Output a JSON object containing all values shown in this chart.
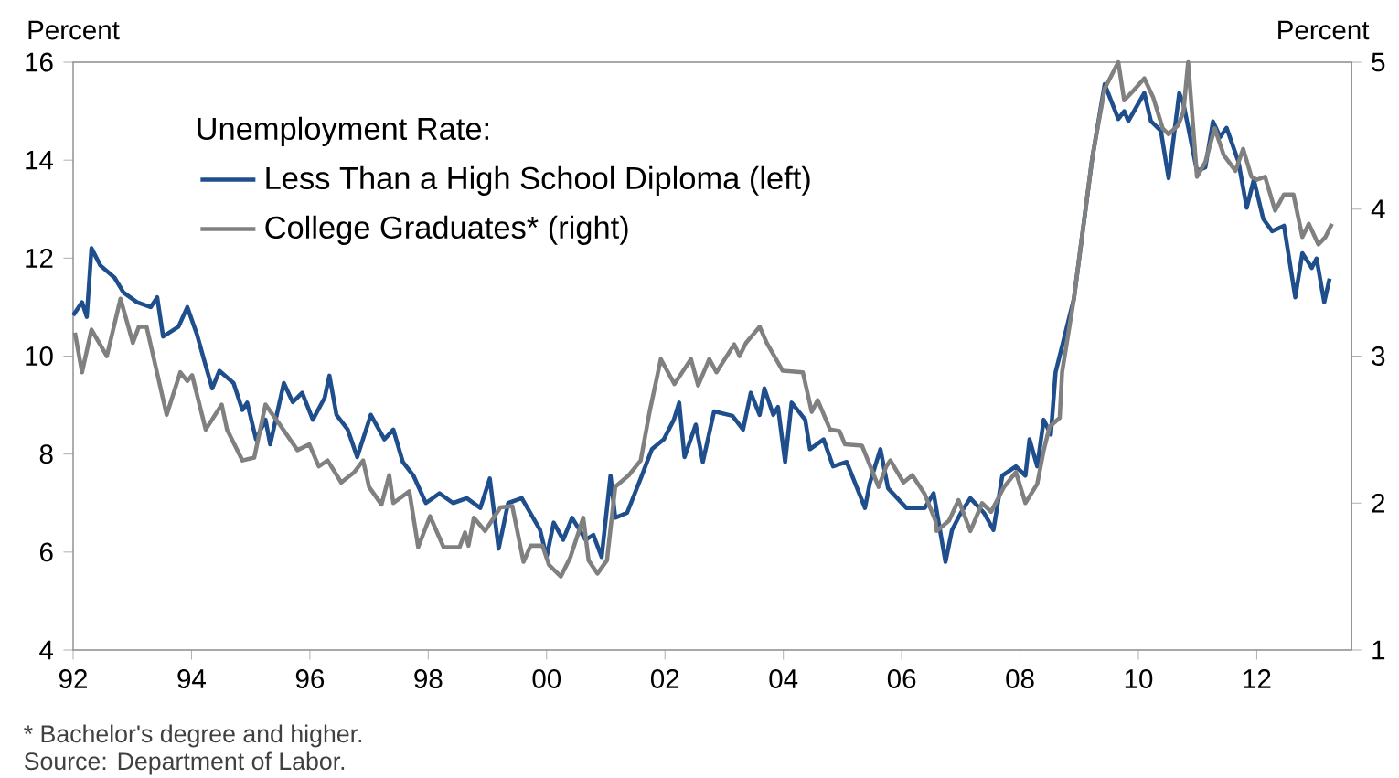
{
  "chart_data": {
    "type": "line",
    "ylabel": "Percent",
    "y2label": "Percent",
    "legend_title": "Unemployment Rate:",
    "legend": "top left",
    "marker": "none",
    "line_style": "solid",
    "grid": false,
    "xlim": [
      1992,
      2013.6
    ],
    "xticks": [
      {
        "value": 1992,
        "label": "92"
      },
      {
        "value": 1994,
        "label": "94"
      },
      {
        "value": 1996,
        "label": "96"
      },
      {
        "value": 1998,
        "label": "98"
      },
      {
        "value": 2000,
        "label": "00"
      },
      {
        "value": 2002,
        "label": "02"
      },
      {
        "value": 2004,
        "label": "04"
      },
      {
        "value": 2006,
        "label": "06"
      },
      {
        "value": 2008,
        "label": "08"
      },
      {
        "value": 2010,
        "label": "10"
      },
      {
        "value": 2012,
        "label": "12"
      }
    ],
    "ylim": [
      4,
      16
    ],
    "yticks": [
      4,
      6,
      8,
      10,
      12,
      14,
      16
    ],
    "y2lim": [
      1,
      5
    ],
    "y2ticks": [
      1,
      2,
      3,
      4,
      5
    ],
    "annotations": [
      "* Bachelor's degree and higher.",
      "Source: Department of Labor."
    ],
    "series": [
      {
        "name": "Less Than a High School Diploma (left)",
        "color": "#1f4e8c",
        "x": [
          1992.0,
          1992.15,
          1992.23,
          1992.31,
          1992.46,
          1992.7,
          1992.85,
          1993.08,
          1993.31,
          1993.42,
          1993.52,
          1993.78,
          1993.93,
          1994.09,
          1994.24,
          1994.35,
          1994.47,
          1994.71,
          1994.86,
          1994.94,
          1995.09,
          1995.25,
          1995.33,
          1995.56,
          1995.71,
          1995.87,
          1996.05,
          1996.25,
          1996.33,
          1996.45,
          1996.64,
          1996.8,
          1997.03,
          1997.26,
          1997.41,
          1997.57,
          1997.75,
          1997.96,
          1998.19,
          1998.42,
          1998.65,
          1998.88,
          1999.04,
          1999.19,
          1999.35,
          1999.58,
          1999.89,
          2000.0,
          2000.12,
          2000.28,
          2000.43,
          2000.66,
          2000.79,
          2000.93,
          2001.08,
          2001.16,
          2001.36,
          2001.59,
          2001.78,
          2001.98,
          2002.15,
          2002.24,
          2002.33,
          2002.52,
          2002.64,
          2002.83,
          2003.14,
          2003.32,
          2003.45,
          2003.6,
          2003.68,
          2003.83,
          2003.91,
          2004.03,
          2004.14,
          2004.37,
          2004.45,
          2004.68,
          2004.84,
          2005.07,
          2005.38,
          2005.46,
          2005.64,
          2005.77,
          2006.08,
          2006.39,
          2006.54,
          2006.74,
          2006.85,
          2007.0,
          2007.16,
          2007.39,
          2007.55,
          2007.7,
          2007.93,
          2008.09,
          2008.16,
          2008.29,
          2008.4,
          2008.52,
          2008.6,
          2008.91,
          2009.22,
          2009.43,
          2009.66,
          2009.76,
          2009.83,
          2010.1,
          2010.21,
          2010.38,
          2010.51,
          2010.69,
          2010.76,
          2010.99,
          2011.13,
          2011.26,
          2011.38,
          2011.49,
          2011.69,
          2011.83,
          2011.95,
          2012.11,
          2012.26,
          2012.46,
          2012.65,
          2012.77,
          2012.93,
          2013.01,
          2013.14,
          2013.23
        ],
        "values": [
          10.83,
          11.1,
          10.8,
          12.2,
          11.85,
          11.6,
          11.3,
          11.1,
          11.0,
          11.2,
          10.4,
          10.6,
          11.0,
          10.45,
          9.8,
          9.34,
          9.7,
          9.45,
          8.9,
          9.05,
          8.3,
          8.7,
          8.2,
          9.45,
          9.06,
          9.25,
          8.7,
          9.15,
          9.6,
          8.8,
          8.5,
          7.94,
          8.8,
          8.3,
          8.5,
          7.84,
          7.56,
          7.0,
          7.2,
          7.0,
          7.1,
          6.9,
          7.5,
          6.07,
          7.0,
          7.1,
          6.45,
          5.9,
          6.6,
          6.25,
          6.7,
          6.25,
          6.35,
          5.9,
          7.56,
          6.7,
          6.8,
          7.5,
          8.1,
          8.3,
          8.7,
          9.05,
          7.94,
          8.6,
          7.84,
          8.87,
          8.78,
          8.5,
          9.25,
          8.8,
          9.34,
          8.8,
          8.96,
          7.84,
          9.05,
          8.7,
          8.1,
          8.3,
          7.75,
          7.84,
          6.9,
          7.4,
          8.1,
          7.3,
          6.9,
          6.9,
          7.2,
          5.8,
          6.45,
          6.8,
          7.1,
          6.8,
          6.45,
          7.56,
          7.75,
          7.56,
          8.3,
          7.75,
          8.7,
          8.4,
          9.67,
          11.17,
          14.04,
          15.55,
          14.84,
          15.0,
          14.8,
          15.37,
          14.8,
          14.6,
          13.63,
          15.37,
          15.16,
          13.78,
          13.85,
          14.79,
          14.47,
          14.66,
          13.97,
          13.03,
          13.6,
          12.8,
          12.55,
          12.66,
          11.2,
          12.1,
          11.8,
          11.99,
          11.1,
          11.58
        ]
      },
      {
        "name": "College Graduates* (right)",
        "color": "#808080",
        "axis": "y2",
        "x": [
          1992.03,
          1992.15,
          1992.31,
          1992.57,
          1992.8,
          1993.01,
          1993.11,
          1993.24,
          1993.58,
          1993.81,
          1993.93,
          1994.01,
          1994.24,
          1994.51,
          1994.6,
          1994.86,
          1995.06,
          1995.25,
          1995.48,
          1995.79,
          1995.99,
          1996.15,
          1996.3,
          1996.53,
          1996.75,
          1996.9,
          1997.0,
          1997.21,
          1997.34,
          1997.41,
          1997.68,
          1997.83,
          1998.03,
          1998.26,
          1998.53,
          1998.62,
          1998.68,
          1998.77,
          1998.96,
          1999.22,
          1999.42,
          1999.61,
          1999.73,
          1999.93,
          2000.04,
          2000.24,
          2000.4,
          2000.62,
          2000.71,
          2000.86,
          2001.02,
          2001.16,
          2001.39,
          2001.59,
          2001.74,
          2001.93,
          2002.16,
          2002.44,
          2002.56,
          2002.75,
          2002.87,
          2003.17,
          2003.26,
          2003.37,
          2003.6,
          2003.72,
          2003.99,
          2004.33,
          2004.48,
          2004.58,
          2004.79,
          2004.95,
          2005.04,
          2005.33,
          2005.61,
          2005.74,
          2005.81,
          2006.03,
          2006.18,
          2006.39,
          2006.57,
          2006.59,
          2006.8,
          2006.96,
          2007.16,
          2007.36,
          2007.51,
          2007.73,
          2007.93,
          2008.09,
          2008.29,
          2008.4,
          2008.5,
          2008.67,
          2008.71,
          2008.91,
          2009.22,
          2009.43,
          2009.66,
          2009.76,
          2009.9,
          2010.1,
          2010.25,
          2010.41,
          2010.51,
          2010.67,
          2010.76,
          2010.84,
          2010.99,
          2011.13,
          2011.29,
          2011.44,
          2011.64,
          2011.77,
          2011.91,
          2012.0,
          2012.14,
          2012.31,
          2012.46,
          2012.62,
          2012.77,
          2012.88,
          2013.04,
          2013.16,
          2013.27
        ],
        "values": [
          3.16,
          2.89,
          3.18,
          3.0,
          3.39,
          3.09,
          3.2,
          3.2,
          2.6,
          2.89,
          2.83,
          2.87,
          2.5,
          2.67,
          2.5,
          2.29,
          2.31,
          2.67,
          2.54,
          2.36,
          2.4,
          2.25,
          2.29,
          2.14,
          2.21,
          2.29,
          2.11,
          1.99,
          2.19,
          2.0,
          2.08,
          1.7,
          1.91,
          1.7,
          1.7,
          1.8,
          1.71,
          1.9,
          1.81,
          1.97,
          1.98,
          1.6,
          1.71,
          1.71,
          1.58,
          1.5,
          1.63,
          1.9,
          1.61,
          1.52,
          1.61,
          2.11,
          2.19,
          2.29,
          2.62,
          2.98,
          2.81,
          2.98,
          2.8,
          2.98,
          2.89,
          3.08,
          3.0,
          3.09,
          3.2,
          3.09,
          2.9,
          2.89,
          2.62,
          2.7,
          2.5,
          2.49,
          2.4,
          2.39,
          2.11,
          2.25,
          2.29,
          2.14,
          2.19,
          2.06,
          1.88,
          1.81,
          1.88,
          2.02,
          1.81,
          2.0,
          1.94,
          2.11,
          2.21,
          2.0,
          2.13,
          2.36,
          2.52,
          2.58,
          2.89,
          3.39,
          4.35,
          4.82,
          5.0,
          4.74,
          4.8,
          4.89,
          4.76,
          4.55,
          4.51,
          4.57,
          4.66,
          5.0,
          4.22,
          4.32,
          4.55,
          4.37,
          4.26,
          4.41,
          4.22,
          4.2,
          4.22,
          3.99,
          4.1,
          4.1,
          3.81,
          3.9,
          3.76,
          3.81,
          3.9
        ]
      }
    ]
  }
}
